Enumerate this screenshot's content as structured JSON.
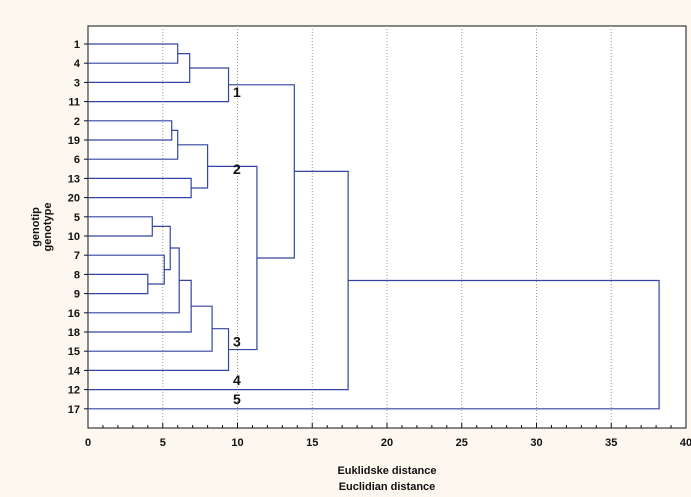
{
  "chart_data": {
    "type": "dendrogram",
    "xlabel": [
      "Euklidske distance",
      "Euclidian distance"
    ],
    "ylabel": [
      "genotip",
      "genotype"
    ],
    "xlim": [
      0,
      40
    ],
    "xticks": [
      0,
      5,
      10,
      15,
      20,
      25,
      30,
      35,
      40
    ],
    "grid": "vertical dotted",
    "leaves": [
      "1",
      "4",
      "3",
      "11",
      "2",
      "19",
      "6",
      "13",
      "20",
      "5",
      "10",
      "7",
      "8",
      "9",
      "16",
      "18",
      "15",
      "14",
      "12",
      "17"
    ],
    "merges": [
      {
        "a": "L:1",
        "b": "L:4",
        "height": 6.0
      },
      {
        "a": "M:0",
        "b": "L:3",
        "height": 6.8
      },
      {
        "a": "M:1",
        "b": "L:11",
        "height": 9.4
      },
      {
        "a": "L:2",
        "b": "L:19",
        "height": 5.6
      },
      {
        "a": "M:3",
        "b": "L:6",
        "height": 6.0
      },
      {
        "a": "L:13",
        "b": "L:20",
        "height": 6.9
      },
      {
        "a": "M:4",
        "b": "M:5",
        "height": 8.0
      },
      {
        "a": "L:5",
        "b": "L:10",
        "height": 4.3
      },
      {
        "a": "L:8",
        "b": "L:9",
        "height": 4.0
      },
      {
        "a": "L:7",
        "b": "M:8",
        "height": 5.1
      },
      {
        "a": "M:7",
        "b": "M:9",
        "height": 5.5
      },
      {
        "a": "M:10",
        "b": "L:16",
        "height": 6.1
      },
      {
        "a": "M:11",
        "b": "L:18",
        "height": 6.9
      },
      {
        "a": "M:12",
        "b": "L:15",
        "height": 8.3
      },
      {
        "a": "M:13",
        "b": "L:14",
        "height": 9.4
      },
      {
        "a": "M:6",
        "b": "M:14",
        "height": 11.3
      },
      {
        "a": "M:2",
        "b": "M:15",
        "height": 13.8
      },
      {
        "a": "M:16",
        "b": "L:12",
        "height": 17.4
      },
      {
        "a": "M:17",
        "b": "L:17",
        "height": 38.2
      }
    ],
    "clusters": [
      {
        "label": "1",
        "x": 9.7,
        "after_leaf": "3"
      },
      {
        "label": "2",
        "x": 9.7,
        "after_leaf": "6"
      },
      {
        "label": "3",
        "x": 9.7,
        "after_leaf": "18"
      },
      {
        "label": "4",
        "x": 9.7,
        "after_leaf": "14"
      },
      {
        "label": "5",
        "x": 9.7,
        "after_leaf": "12"
      }
    ],
    "colors": {
      "line": "#3345a0",
      "grid": "#9a9a9a",
      "frame": "#111111",
      "background": "#fdf8ef",
      "plot": "#ffffff"
    }
  }
}
